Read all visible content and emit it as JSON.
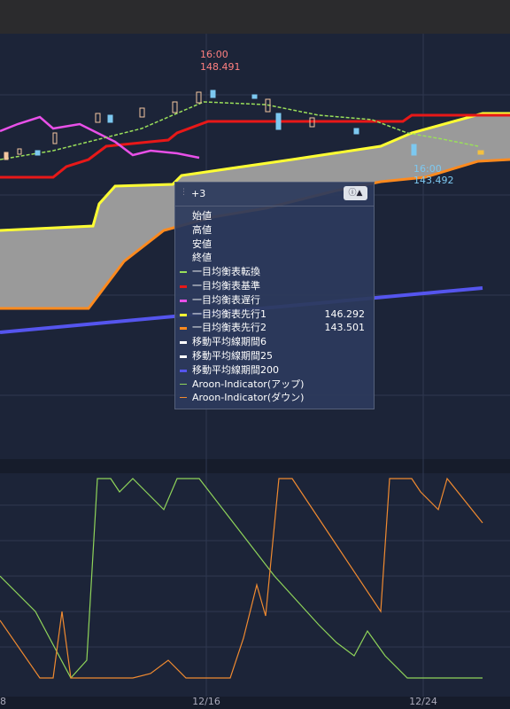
{
  "price_labels": {
    "high_time": "16:00",
    "high_price": "148.491",
    "low_time": "16:00",
    "low_price": "143.492"
  },
  "panel": {
    "title": "+3",
    "rows": [
      {
        "label": "始値"
      },
      {
        "label": "高値"
      },
      {
        "label": "安値"
      },
      {
        "label": "終値"
      },
      {
        "label": "一目均衡表転換"
      },
      {
        "label": "一目均衡表基準"
      },
      {
        "label": "一目均衡表遅行"
      },
      {
        "label": "一目均衡表先行1",
        "value": "146.292"
      },
      {
        "label": "一目均衡表先行2",
        "value": "143.501"
      },
      {
        "label": "移動平均線期間6"
      },
      {
        "label": "移動平均線期間25"
      },
      {
        "label": "移動平均線期間200"
      },
      {
        "label": "Aroon-Indicator(アップ)"
      },
      {
        "label": "Aroon-Indicator(ダウン)"
      }
    ]
  },
  "x_axis": {
    "labels": [
      "8",
      "12/16",
      "12/24"
    ]
  }
}
